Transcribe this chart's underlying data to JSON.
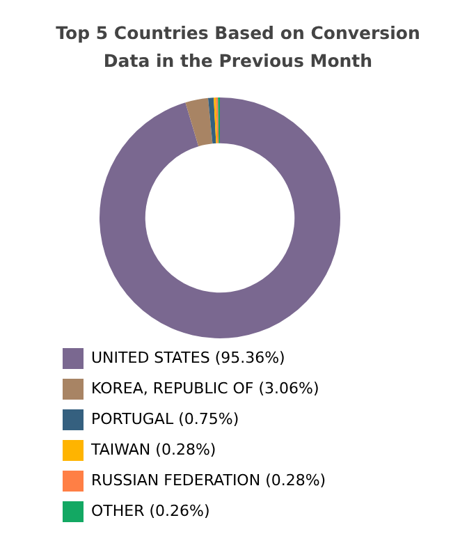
{
  "chart_data": {
    "type": "donut",
    "title": "Top 5 Countries Based on Conversion Data in the Previous Month",
    "categories": [
      "UNITED STATES",
      "KOREA, REPUBLIC OF",
      "PORTUGAL",
      "TAIWAN",
      "RUSSIAN FEDERATION",
      "OTHER"
    ],
    "values": [
      95.36,
      3.06,
      0.75,
      0.28,
      0.28,
      0.26
    ],
    "value_labels": [
      "(95.36%)",
      "(3.06%)",
      "(0.75%)",
      "(0.28%)",
      "(0.28%)",
      "(0.26%)"
    ],
    "colors": [
      "#7a6890",
      "#a88464",
      "#35607f",
      "#ffb400",
      "#ff7f45",
      "#13a863"
    ],
    "legend": "bottom"
  }
}
